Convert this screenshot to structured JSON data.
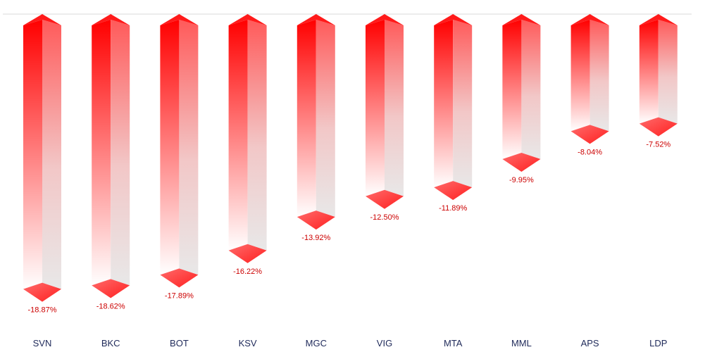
{
  "chart_data": {
    "type": "bar",
    "orientation": "vertical-3d",
    "categories": [
      "SVN",
      "BKC",
      "BOT",
      "KSV",
      "MGC",
      "VIG",
      "MTA",
      "MML",
      "APS",
      "LDP"
    ],
    "series": [
      {
        "values": [
          -18.87,
          -18.62,
          -17.89,
          -16.22,
          -13.92,
          -12.5,
          -11.89,
          -9.95,
          -8.04,
          -7.52
        ],
        "labels": [
          "-18.87%",
          "-18.62%",
          "-17.89%",
          "-16.22%",
          "-13.92%",
          "-12.50%",
          "-11.89%",
          "-9.95%",
          "-8.04%",
          "-7.52%"
        ]
      }
    ],
    "title": "",
    "xlabel": "",
    "ylabel": "",
    "ylim": [
      -20,
      0
    ],
    "grid": false,
    "legend": "none",
    "colors": {
      "bar_top": "#ff0000",
      "bar_bottom": "#ffffff",
      "side_shade": "#e8e8e8",
      "cap": "#ff3b3b",
      "label": "#cc0000",
      "category": "#1f2a5a",
      "baseline": "#d9d9d9"
    }
  }
}
